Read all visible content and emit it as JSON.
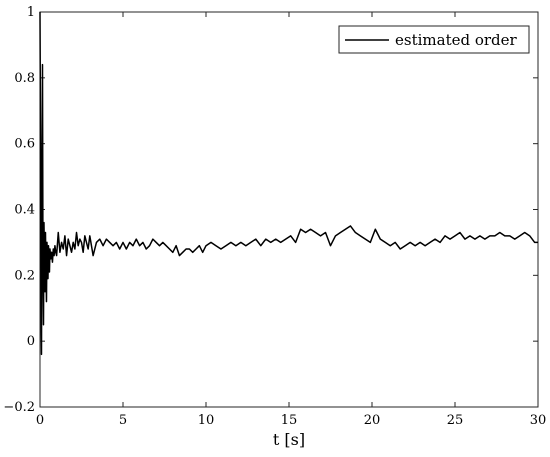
{
  "chart_data": {
    "type": "line",
    "title": "",
    "xlabel": "t [s]",
    "ylabel": "",
    "xlim": [
      0,
      30
    ],
    "ylim": [
      -0.2,
      1
    ],
    "xticks": [
      0,
      5,
      10,
      15,
      20,
      25,
      30
    ],
    "xtick_labels": [
      "0",
      "5",
      "10",
      "15",
      "20",
      "25",
      "30"
    ],
    "yticks": [
      -0.2,
      0,
      0.2,
      0.4,
      0.6,
      0.8,
      1
    ],
    "ytick_labels": [
      "−0.2",
      "0",
      "0.2",
      "0.4",
      "0.6",
      "0.8",
      "1"
    ],
    "grid": false,
    "legend_position": "top-right",
    "series": [
      {
        "name": "estimated order",
        "color": "#000000",
        "x": [
          0,
          0.03,
          0.06,
          0.09,
          0.12,
          0.15,
          0.18,
          0.21,
          0.24,
          0.27,
          0.3,
          0.33,
          0.36,
          0.39,
          0.42,
          0.45,
          0.48,
          0.51,
          0.54,
          0.57,
          0.6,
          0.65,
          0.7,
          0.75,
          0.8,
          0.85,
          0.9,
          0.95,
          1.0,
          1.1,
          1.2,
          1.3,
          1.4,
          1.5,
          1.6,
          1.7,
          1.8,
          1.9,
          2.0,
          2.1,
          2.2,
          2.3,
          2.4,
          2.5,
          2.6,
          2.7,
          2.8,
          2.9,
          3.0,
          3.2,
          3.4,
          3.6,
          3.8,
          4.0,
          4.2,
          4.4,
          4.6,
          4.8,
          5.0,
          5.2,
          5.4,
          5.6,
          5.8,
          6.0,
          6.2,
          6.4,
          6.6,
          6.8,
          7.0,
          7.2,
          7.4,
          7.6,
          7.8,
          8.0,
          8.2,
          8.4,
          8.6,
          8.8,
          9.0,
          9.2,
          9.4,
          9.6,
          9.8,
          10.0,
          10.3,
          10.6,
          10.9,
          11.2,
          11.5,
          11.8,
          12.1,
          12.4,
          12.7,
          13.0,
          13.3,
          13.6,
          13.9,
          14.2,
          14.5,
          14.8,
          15.1,
          15.4,
          15.7,
          16.0,
          16.3,
          16.6,
          16.9,
          17.2,
          17.5,
          17.8,
          18.1,
          18.4,
          18.7,
          19.0,
          19.3,
          19.6,
          19.9,
          20.2,
          20.5,
          20.8,
          21.1,
          21.4,
          21.7,
          22.0,
          22.3,
          22.6,
          22.9,
          23.2,
          23.5,
          23.8,
          24.1,
          24.4,
          24.7,
          25.0,
          25.3,
          25.6,
          25.9,
          26.2,
          26.5,
          26.8,
          27.1,
          27.4,
          27.7,
          28.0,
          28.3,
          28.6,
          28.9,
          29.2,
          29.5,
          29.8,
          30.0
        ],
        "y": [
          1.0,
          0.62,
          0.1,
          -0.04,
          0.55,
          0.84,
          0.2,
          0.05,
          0.36,
          0.25,
          0.15,
          0.33,
          0.22,
          0.12,
          0.3,
          0.24,
          0.19,
          0.29,
          0.26,
          0.21,
          0.28,
          0.25,
          0.27,
          0.24,
          0.28,
          0.26,
          0.29,
          0.27,
          0.26,
          0.33,
          0.27,
          0.3,
          0.28,
          0.32,
          0.26,
          0.31,
          0.29,
          0.27,
          0.3,
          0.28,
          0.33,
          0.29,
          0.31,
          0.3,
          0.27,
          0.32,
          0.3,
          0.28,
          0.32,
          0.26,
          0.3,
          0.31,
          0.29,
          0.31,
          0.3,
          0.29,
          0.3,
          0.28,
          0.3,
          0.28,
          0.3,
          0.29,
          0.31,
          0.29,
          0.3,
          0.28,
          0.29,
          0.31,
          0.3,
          0.29,
          0.3,
          0.29,
          0.28,
          0.27,
          0.29,
          0.26,
          0.27,
          0.28,
          0.28,
          0.27,
          0.28,
          0.29,
          0.27,
          0.29,
          0.3,
          0.29,
          0.28,
          0.29,
          0.3,
          0.29,
          0.3,
          0.29,
          0.3,
          0.31,
          0.29,
          0.31,
          0.3,
          0.31,
          0.3,
          0.31,
          0.32,
          0.3,
          0.34,
          0.33,
          0.34,
          0.33,
          0.32,
          0.33,
          0.29,
          0.32,
          0.33,
          0.34,
          0.35,
          0.33,
          0.32,
          0.31,
          0.3,
          0.34,
          0.31,
          0.3,
          0.29,
          0.3,
          0.28,
          0.29,
          0.3,
          0.29,
          0.3,
          0.29,
          0.3,
          0.31,
          0.3,
          0.32,
          0.31,
          0.32,
          0.33,
          0.31,
          0.32,
          0.31,
          0.32,
          0.31,
          0.32,
          0.32,
          0.33,
          0.32,
          0.32,
          0.31,
          0.32,
          0.33,
          0.32,
          0.3,
          0.3
        ]
      }
    ]
  }
}
